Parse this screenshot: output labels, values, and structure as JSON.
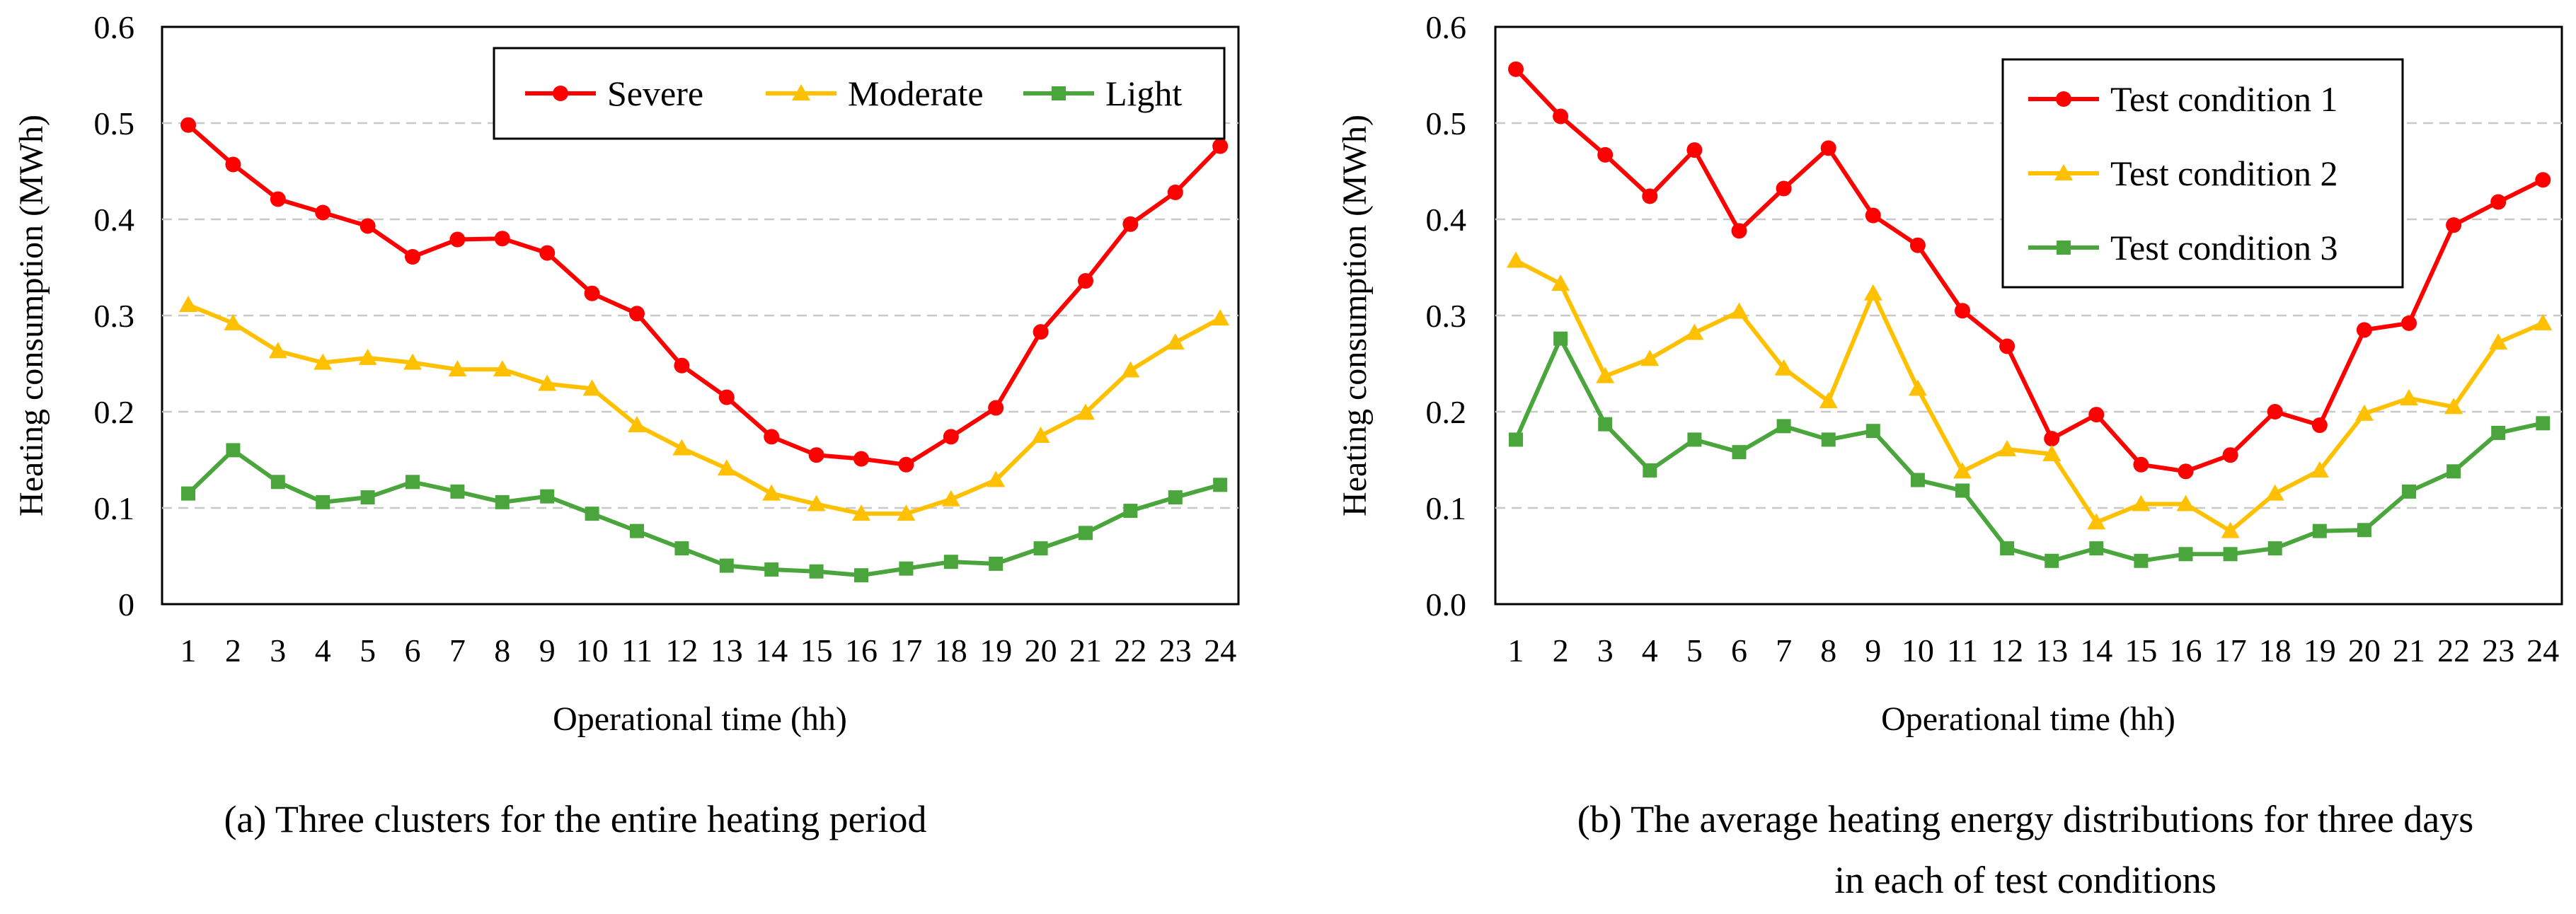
{
  "chart_data": [
    {
      "type": "line",
      "caption": "(a)  Three clusters for the entire heating period",
      "xlabel": "Operational time (hh)",
      "ylabel": "Heating consumption (MWh)",
      "ylim": [
        0,
        0.6
      ],
      "yticks": [
        "0",
        "0.1",
        "0.2",
        "0.3",
        "0.4",
        "0.5",
        "0.6"
      ],
      "grid": "horizontal dashed",
      "legend_position": "top-right",
      "legend_layout": "horizontal",
      "categories": [
        "1",
        "2",
        "3",
        "4",
        "5",
        "6",
        "7",
        "8",
        "9",
        "10",
        "11",
        "12",
        "13",
        "14",
        "15",
        "16",
        "17",
        "18",
        "19",
        "20",
        "21",
        "22",
        "23",
        "24"
      ],
      "series": [
        {
          "name": "Severe",
          "color": "#ff0000",
          "marker": "circle",
          "values": [
            0.498,
            0.457,
            0.421,
            0.407,
            0.393,
            0.361,
            0.379,
            0.38,
            0.365,
            0.323,
            0.302,
            0.248,
            0.215,
            0.174,
            0.155,
            0.151,
            0.145,
            0.174,
            0.204,
            0.283,
            0.336,
            0.395,
            0.428,
            0.476
          ]
        },
        {
          "name": "Moderate",
          "color": "#ffc000",
          "marker": "triangle",
          "values": [
            0.311,
            0.292,
            0.263,
            0.251,
            0.256,
            0.251,
            0.244,
            0.244,
            0.229,
            0.224,
            0.186,
            0.162,
            0.141,
            0.115,
            0.104,
            0.094,
            0.094,
            0.109,
            0.129,
            0.175,
            0.199,
            0.243,
            0.272,
            0.297
          ]
        },
        {
          "name": "Light",
          "color": "#4aa63c",
          "marker": "square",
          "values": [
            0.115,
            0.16,
            0.127,
            0.106,
            0.111,
            0.127,
            0.117,
            0.106,
            0.112,
            0.094,
            0.076,
            0.058,
            0.04,
            0.036,
            0.034,
            0.03,
            0.037,
            0.044,
            0.042,
            0.058,
            0.074,
            0.097,
            0.111,
            0.124
          ]
        }
      ]
    },
    {
      "type": "line",
      "caption_lines": [
        "(b)  The average heating energy distributions for three days",
        "in each of test conditions"
      ],
      "xlabel": "Operational time (hh)",
      "ylabel": "Heating consumption (MWh)",
      "ylim": [
        0,
        0.6
      ],
      "yticks": [
        "0.0",
        "0.1",
        "0.2",
        "0.3",
        "0.4",
        "0.5",
        "0.6"
      ],
      "grid": "horizontal dashed",
      "legend_position": "top-right",
      "legend_layout": "vertical",
      "categories": [
        "1",
        "2",
        "3",
        "4",
        "5",
        "6",
        "7",
        "8",
        "9",
        "10",
        "11",
        "12",
        "13",
        "14",
        "15",
        "16",
        "17",
        "18",
        "19",
        "20",
        "21",
        "22",
        "23",
        "24"
      ],
      "series": [
        {
          "name": "Test condition 1",
          "color": "#ff0000",
          "marker": "circle",
          "values": [
            0.556,
            0.507,
            0.467,
            0.424,
            0.472,
            0.388,
            0.432,
            0.474,
            0.404,
            0.373,
            0.305,
            0.268,
            0.172,
            0.197,
            0.145,
            0.138,
            0.155,
            0.2,
            0.186,
            0.285,
            0.292,
            0.394,
            0.418,
            0.441
          ]
        },
        {
          "name": "Test condition 2",
          "color": "#ffc000",
          "marker": "triangle",
          "values": [
            0.357,
            0.333,
            0.237,
            0.255,
            0.282,
            0.304,
            0.245,
            0.211,
            0.323,
            0.224,
            0.138,
            0.161,
            0.156,
            0.085,
            0.104,
            0.104,
            0.076,
            0.115,
            0.139,
            0.198,
            0.214,
            0.205,
            0.272,
            0.292
          ]
        },
        {
          "name": "Test condition 3",
          "color": "#4aa63c",
          "marker": "square",
          "values": [
            0.171,
            0.276,
            0.187,
            0.139,
            0.171,
            0.158,
            0.185,
            0.171,
            0.18,
            0.129,
            0.118,
            0.058,
            0.045,
            0.058,
            0.045,
            0.052,
            0.052,
            0.058,
            0.076,
            0.077,
            0.117,
            0.138,
            0.178,
            0.188
          ]
        }
      ]
    }
  ]
}
